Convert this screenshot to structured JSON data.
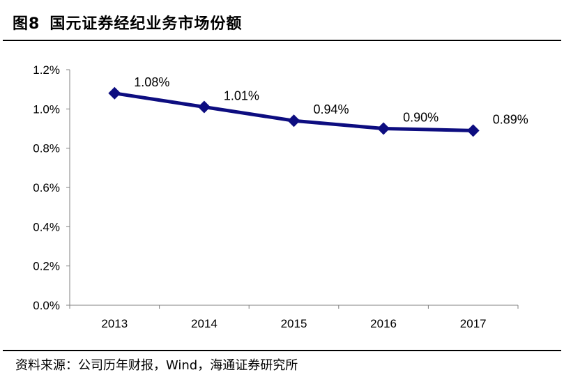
{
  "figure": {
    "number": "图8",
    "title": "国元证券经纪业务市场份额",
    "source": "资料来源：公司历年财报，Wind，海通证券研究所"
  },
  "chart_data": {
    "type": "line",
    "title": "",
    "xlabel": "",
    "ylabel": "",
    "categories": [
      "2013",
      "2014",
      "2015",
      "2016",
      "2017"
    ],
    "series": [
      {
        "values": [
          1.08,
          1.01,
          0.94,
          0.9,
          0.89
        ],
        "color": "#0d0d80"
      }
    ],
    "data_labels": [
      "1.08%",
      "1.01%",
      "0.94%",
      "0.90%",
      "0.89%"
    ],
    "ylim": [
      0,
      1.2
    ],
    "y_ticks": [
      0,
      0.2,
      0.4,
      0.6,
      0.8,
      1.0,
      1.2
    ],
    "y_tick_labels": [
      "0.0%",
      "0.2%",
      "0.4%",
      "0.6%",
      "0.8%",
      "1.0%",
      "1.2%"
    ],
    "grid": false,
    "legend": "none",
    "marker": "diamond"
  }
}
